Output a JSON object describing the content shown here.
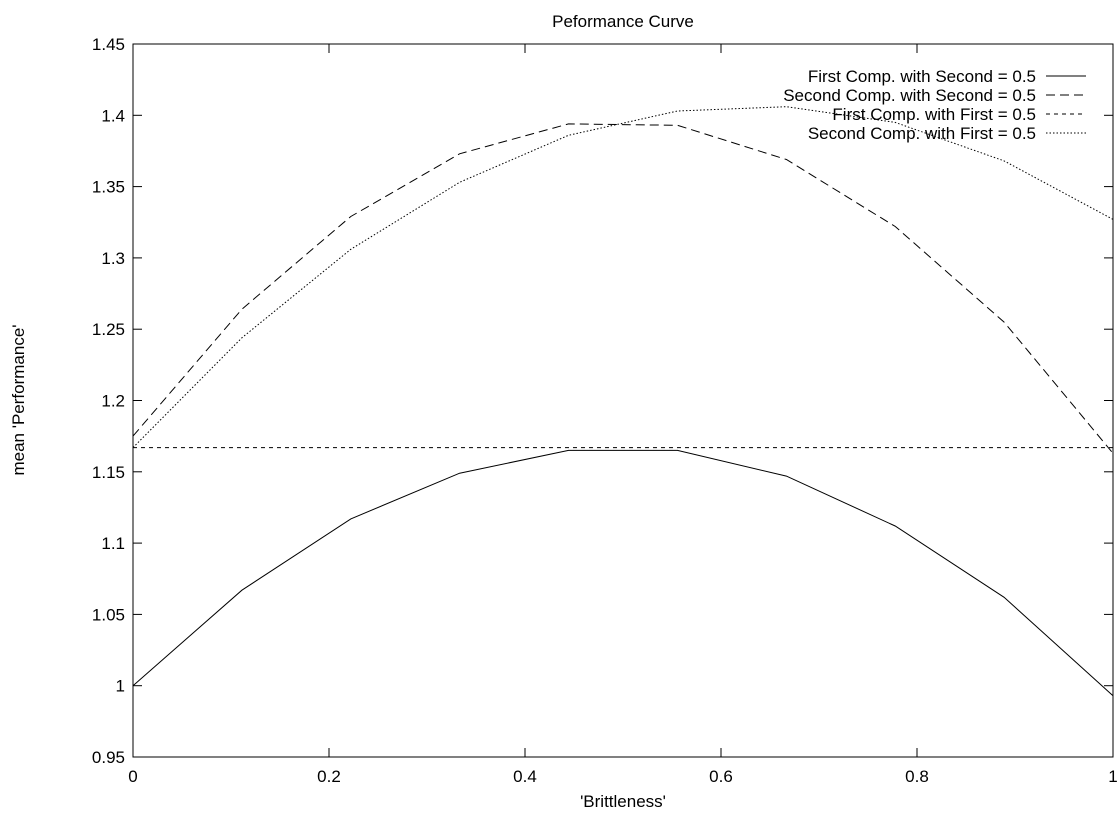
{
  "chart_data": {
    "type": "line",
    "title": "Peformance Curve",
    "xlabel": "'Brittleness'",
    "ylabel": "mean 'Performance'",
    "xlim": [
      0,
      1
    ],
    "ylim": [
      0.95,
      1.45
    ],
    "x_ticks": [
      0,
      0.2,
      0.4,
      0.6,
      0.8,
      1
    ],
    "x_tick_labels": [
      "0",
      "0.2",
      "0.4",
      "0.6",
      "0.8",
      "1"
    ],
    "y_ticks": [
      0.95,
      1.0,
      1.05,
      1.1,
      1.15,
      1.2,
      1.25,
      1.3,
      1.35,
      1.4,
      1.45
    ],
    "y_tick_labels": [
      "0.95",
      "1",
      "1.05",
      "1.1",
      "1.15",
      "1.2",
      "1.25",
      "1.3",
      "1.35",
      "1.4",
      "1.45"
    ],
    "grid": false,
    "legend_position": "top-right",
    "x": [
      0,
      0.1111,
      0.2222,
      0.3333,
      0.4444,
      0.5556,
      0.6667,
      0.7778,
      0.8889,
      1.0
    ],
    "series": [
      {
        "name": "First Comp. with Second = 0.5",
        "dash": "solid",
        "values": [
          1.0,
          1.067,
          1.117,
          1.149,
          1.165,
          1.165,
          1.147,
          1.112,
          1.062,
          0.993
        ]
      },
      {
        "name": "Second Comp. with Second = 0.5",
        "dash": "long-dash",
        "values": [
          1.175,
          1.264,
          1.329,
          1.373,
          1.394,
          1.393,
          1.369,
          1.322,
          1.255,
          1.163
        ]
      },
      {
        "name": "First Comp. with First = 0.5",
        "dash": "short-dash",
        "values": [
          1.167,
          1.167,
          1.167,
          1.167,
          1.167,
          1.167,
          1.167,
          1.167,
          1.167,
          1.167
        ]
      },
      {
        "name": "Second Comp. with First = 0.5",
        "dash": "dotted",
        "values": [
          1.167,
          1.244,
          1.306,
          1.353,
          1.386,
          1.403,
          1.406,
          1.395,
          1.368,
          1.327
        ]
      }
    ]
  }
}
